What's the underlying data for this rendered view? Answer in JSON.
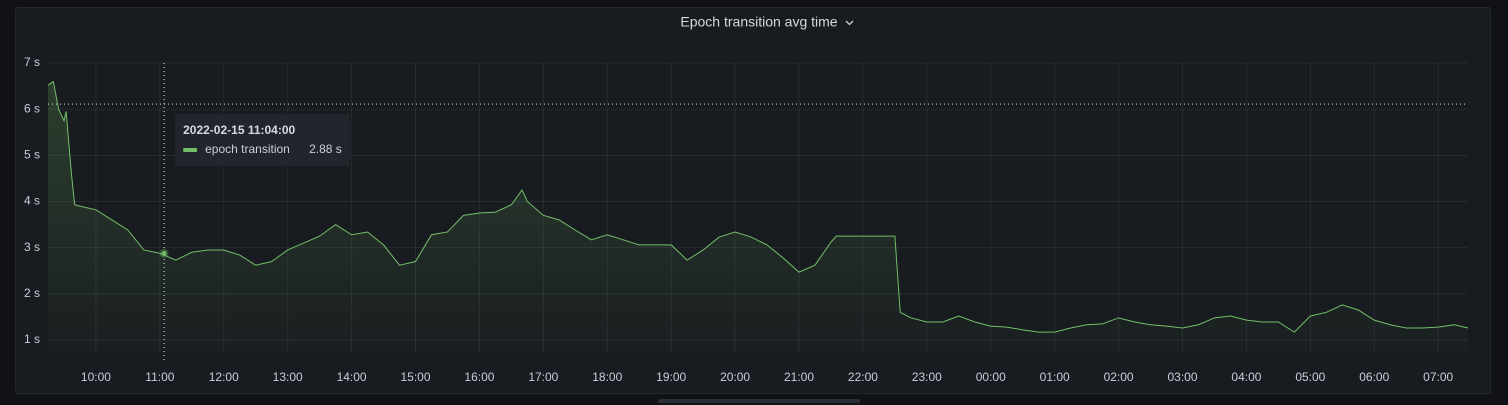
{
  "chart_data": {
    "type": "line",
    "title": "Epoch transition avg time",
    "x": [
      "2022-02-15T09:15",
      "2022-02-15T09:20",
      "2022-02-15T09:25",
      "2022-02-15T09:30",
      "2022-02-15T09:32",
      "2022-02-15T09:37",
      "2022-02-15T09:40",
      "2022-02-15T09:45",
      "2022-02-15T10:00",
      "2022-02-15T10:15",
      "2022-02-15T10:30",
      "2022-02-15T10:45",
      "2022-02-15T11:00",
      "2022-02-15T11:15",
      "2022-02-15T11:30",
      "2022-02-15T11:45",
      "2022-02-15T12:00",
      "2022-02-15T12:15",
      "2022-02-15T12:30",
      "2022-02-15T12:45",
      "2022-02-15T13:00",
      "2022-02-15T13:15",
      "2022-02-15T13:30",
      "2022-02-15T13:45",
      "2022-02-15T14:00",
      "2022-02-15T14:15",
      "2022-02-15T14:30",
      "2022-02-15T14:45",
      "2022-02-15T15:00",
      "2022-02-15T15:15",
      "2022-02-15T15:30",
      "2022-02-15T15:45",
      "2022-02-15T16:00",
      "2022-02-15T16:15",
      "2022-02-15T16:30",
      "2022-02-15T16:40",
      "2022-02-15T16:45",
      "2022-02-15T17:00",
      "2022-02-15T17:15",
      "2022-02-15T17:30",
      "2022-02-15T17:45",
      "2022-02-15T18:00",
      "2022-02-15T18:15",
      "2022-02-15T18:30",
      "2022-02-15T18:45",
      "2022-02-15T19:00",
      "2022-02-15T19:15",
      "2022-02-15T19:30",
      "2022-02-15T19:45",
      "2022-02-15T20:00",
      "2022-02-15T20:15",
      "2022-02-15T20:30",
      "2022-02-15T20:45",
      "2022-02-15T21:00",
      "2022-02-15T21:15",
      "2022-02-15T21:30",
      "2022-02-15T21:35",
      "2022-02-15T22:30",
      "2022-02-15T22:35",
      "2022-02-15T22:45",
      "2022-02-15T23:00",
      "2022-02-15T23:15",
      "2022-02-15T23:30",
      "2022-02-15T23:45",
      "2022-02-16T00:00",
      "2022-02-16T00:15",
      "2022-02-16T00:30",
      "2022-02-16T00:45",
      "2022-02-16T01:00",
      "2022-02-16T01:15",
      "2022-02-16T01:30",
      "2022-02-16T01:45",
      "2022-02-16T02:00",
      "2022-02-16T02:15",
      "2022-02-16T02:30",
      "2022-02-16T02:45",
      "2022-02-16T03:00",
      "2022-02-16T03:15",
      "2022-02-16T03:30",
      "2022-02-16T03:45",
      "2022-02-16T04:00",
      "2022-02-16T04:15",
      "2022-02-16T04:30",
      "2022-02-16T04:45",
      "2022-02-16T05:00",
      "2022-02-16T05:15",
      "2022-02-16T05:30",
      "2022-02-16T05:45",
      "2022-02-16T06:00",
      "2022-02-16T06:15",
      "2022-02-16T06:30",
      "2022-02-16T06:45",
      "2022-02-16T07:00",
      "2022-02-16T07:15",
      "2022-02-16T07:28"
    ],
    "series": [
      {
        "name": "epoch transition",
        "color": "#73bf69",
        "values": [
          6.52,
          6.6,
          6.0,
          5.75,
          5.95,
          4.6,
          3.93,
          3.9,
          3.82,
          3.6,
          3.38,
          2.95,
          2.88,
          2.73,
          2.9,
          2.95,
          2.95,
          2.84,
          2.62,
          2.7,
          2.95,
          3.1,
          3.25,
          3.5,
          3.28,
          3.34,
          3.06,
          2.62,
          2.7,
          3.28,
          3.34,
          3.7,
          3.75,
          3.77,
          3.93,
          4.25,
          4.0,
          3.7,
          3.6,
          3.38,
          3.17,
          3.28,
          3.17,
          3.06,
          3.06,
          3.06,
          2.73,
          2.95,
          3.23,
          3.34,
          3.23,
          3.06,
          2.78,
          2.47,
          2.62,
          3.12,
          3.25,
          3.25,
          1.6,
          1.48,
          1.39,
          1.39,
          1.52,
          1.39,
          1.3,
          1.28,
          1.22,
          1.17,
          1.17,
          1.26,
          1.33,
          1.35,
          1.48,
          1.39,
          1.33,
          1.3,
          1.26,
          1.33,
          1.48,
          1.52,
          1.43,
          1.39,
          1.39,
          1.17,
          1.52,
          1.6,
          1.76,
          1.65,
          1.43,
          1.33,
          1.26,
          1.26,
          1.28,
          1.33,
          1.26
        ]
      }
    ],
    "xlim": [
      "2022-02-15T09:15",
      "2022-02-16T07:28"
    ],
    "xticks": [
      {
        "value": "2022-02-15T10:00",
        "label": "10:00"
      },
      {
        "value": "2022-02-15T11:00",
        "label": "11:00"
      },
      {
        "value": "2022-02-15T12:00",
        "label": "12:00"
      },
      {
        "value": "2022-02-15T13:00",
        "label": "13:00"
      },
      {
        "value": "2022-02-15T14:00",
        "label": "14:00"
      },
      {
        "value": "2022-02-15T15:00",
        "label": "15:00"
      },
      {
        "value": "2022-02-15T16:00",
        "label": "16:00"
      },
      {
        "value": "2022-02-15T17:00",
        "label": "17:00"
      },
      {
        "value": "2022-02-15T18:00",
        "label": "18:00"
      },
      {
        "value": "2022-02-15T19:00",
        "label": "19:00"
      },
      {
        "value": "2022-02-15T20:00",
        "label": "20:00"
      },
      {
        "value": "2022-02-15T21:00",
        "label": "21:00"
      },
      {
        "value": "2022-02-15T22:00",
        "label": "22:00"
      },
      {
        "value": "2022-02-15T23:00",
        "label": "23:00"
      },
      {
        "value": "2022-02-16T00:00",
        "label": "00:00"
      },
      {
        "value": "2022-02-16T01:00",
        "label": "01:00"
      },
      {
        "value": "2022-02-16T02:00",
        "label": "02:00"
      },
      {
        "value": "2022-02-16T03:00",
        "label": "03:00"
      },
      {
        "value": "2022-02-16T04:00",
        "label": "04:00"
      },
      {
        "value": "2022-02-16T05:00",
        "label": "05:00"
      },
      {
        "value": "2022-02-16T06:00",
        "label": "06:00"
      },
      {
        "value": "2022-02-16T07:00",
        "label": "07:00"
      }
    ],
    "ylim": [
      0.74,
      7
    ],
    "yticks": [
      {
        "value": 1,
        "label": "1 s"
      },
      {
        "value": 2,
        "label": "2 s"
      },
      {
        "value": 3,
        "label": "3 s"
      },
      {
        "value": 4,
        "label": "4 s"
      },
      {
        "value": 5,
        "label": "5 s"
      },
      {
        "value": 6,
        "label": "6 s"
      },
      {
        "value": 7,
        "label": "7 s"
      }
    ],
    "grid": true,
    "threshold": 6.11,
    "tooltip": {
      "x": "2022-02-15T11:04",
      "label": "2022-02-15 11:04:00",
      "value": 2.88,
      "value_label": "2.88 s"
    }
  }
}
